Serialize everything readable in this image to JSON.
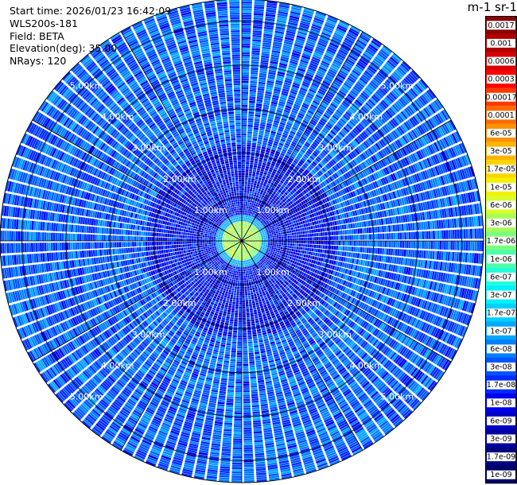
{
  "info": {
    "start_time": "Start time: 2026/01/23 16:42:09",
    "device": "WLS200s-181",
    "field": "Field: BETA",
    "elevation": "Elevation(deg): 35.00",
    "nrays": "NRays: 120"
  },
  "unit_label": "m-1 sr-1",
  "range_labels": [
    "1.00km",
    "2.00km",
    "3.00km",
    "4.00km",
    "5.00km"
  ],
  "colorbar": {
    "ticks": [
      "0.0017",
      "0.001",
      "0.0006",
      "0.0003",
      "0.00017",
      "0.0001",
      "6e-05",
      "3e-05",
      "1.7e-05",
      "1e-05",
      "6e-06",
      "3e-06",
      "1.7e-06",
      "1e-06",
      "6e-07",
      "3e-07",
      "1.7e-07",
      "1e-07",
      "6e-08",
      "3e-08",
      "1.7e-08",
      "1e-08",
      "6e-09",
      "3e-09",
      "1.7e-09",
      "1e-09"
    ],
    "colors": [
      "#8b0000",
      "#b00000",
      "#d80000",
      "#ff0000",
      "#ff3a00",
      "#ff6a00",
      "#ff9200",
      "#ffb400",
      "#ffd400",
      "#f4f000",
      "#d8ff2a",
      "#a8ff5a",
      "#7cff7c",
      "#4cffaa",
      "#22ffd8",
      "#00f0ff",
      "#00d0ff",
      "#00a8ff",
      "#0080ff",
      "#0055ff",
      "#002aff",
      "#0000f0",
      "#0000c8",
      "#0000a0",
      "#000080",
      "#00006a"
    ]
  },
  "chart_data": {
    "type": "heatmap",
    "projection": "polar PPI",
    "nrays": 120,
    "elevation_deg": 35.0,
    "max_range_km": 5.5,
    "range_rings_km": [
      1,
      2,
      3,
      4,
      5
    ],
    "range_rings_km_labeled": [
      1,
      2,
      3,
      4,
      5
    ],
    "gate_length_km": 0.05,
    "field": "BETA",
    "units": "m-1 sr-1",
    "color_scale": "log",
    "vmin": 1e-09,
    "vmax": 0.0017,
    "dominant_level_far": 3e-08,
    "dominant_level_mid": 1e-08,
    "core_radius_km": 0.45,
    "core_level": 1.7e-06,
    "core_peak_level": 1e-05
  }
}
